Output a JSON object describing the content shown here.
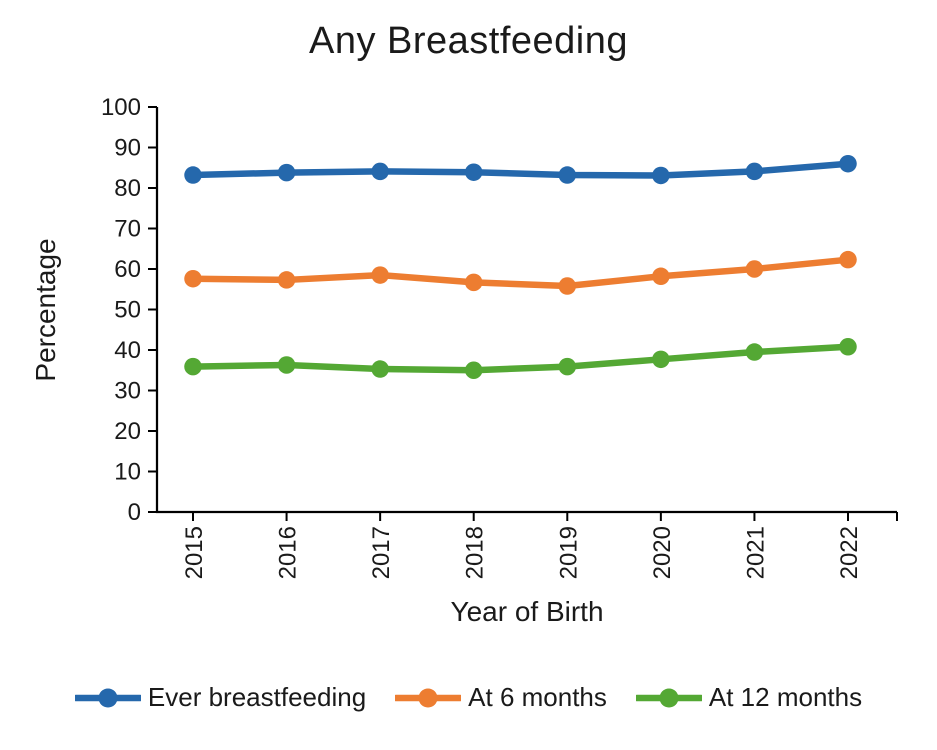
{
  "title": "Any Breastfeeding",
  "chart_data": {
    "type": "line",
    "title": "Any Breastfeeding",
    "xlabel": "Year of Birth",
    "ylabel": "Percentage",
    "categories": [
      "2015",
      "2016",
      "2017",
      "2018",
      "2019",
      "2020",
      "2021",
      "2022"
    ],
    "ylim": [
      0,
      100
    ],
    "ytick_step": 10,
    "grid": false,
    "legend_position": "bottom",
    "marker": "circle",
    "series": [
      {
        "name": "Ever breastfeeding",
        "color": "#2568AC",
        "values": [
          83.2,
          83.8,
          84.1,
          83.9,
          83.2,
          83.1,
          84.1,
          86.0
        ]
      },
      {
        "name": "At 6 months",
        "color": "#ED7D31",
        "values": [
          57.6,
          57.3,
          58.5,
          56.7,
          55.8,
          58.2,
          60.0,
          62.3
        ]
      },
      {
        "name": "At 12 months",
        "color": "#54A834",
        "values": [
          35.9,
          36.3,
          35.3,
          35.0,
          35.9,
          37.7,
          39.5,
          40.8
        ]
      }
    ]
  }
}
